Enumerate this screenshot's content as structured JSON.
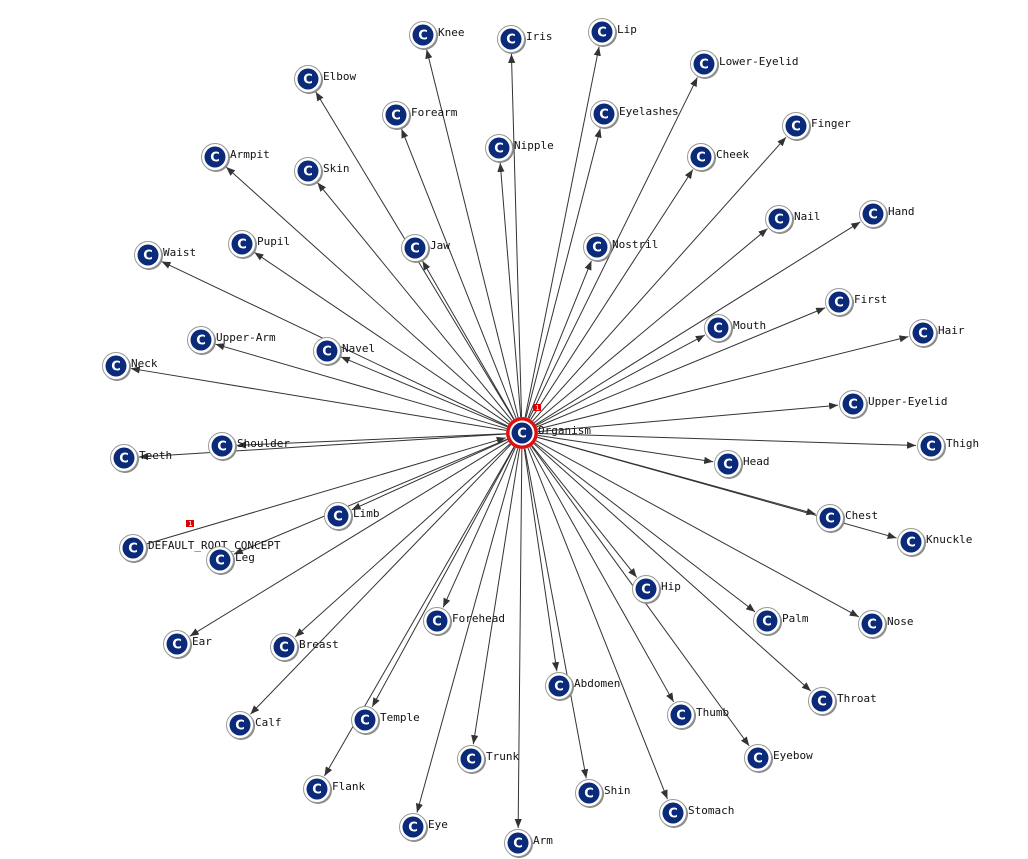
{
  "graph": {
    "root": "Organism",
    "parent": "DEFAULT_ROOT_CONCEPT",
    "node_icon_letter": "C",
    "badge_text": "1",
    "colors": {
      "node_fill": "#0b2a7a",
      "root_ring": "#e01010",
      "edge": "#333333",
      "badge": "#e00000"
    },
    "children": [
      "Knee",
      "Iris",
      "Lip",
      "Lower-Eyelid",
      "Elbow",
      "Forearm",
      "Eyelashes",
      "Nipple",
      "Finger",
      "Cheek",
      "Armpit",
      "Skin",
      "Nail",
      "Hand",
      "Jaw",
      "Nostril",
      "Pupil",
      "Waist",
      "First",
      "Hair",
      "Mouth",
      "Upper-Arm",
      "Navel",
      "Neck",
      "Upper-Eyelid",
      "Shoulder",
      "Teeth",
      "Thigh",
      "Head",
      "Chest",
      "Knuckle",
      "Limb",
      "Leg",
      "Hip",
      "Palm",
      "Nose",
      "Forehead",
      "Ear",
      "Breast",
      "Abdomen",
      "Throat",
      "Calf",
      "Thumb",
      "Temple",
      "Eyebow",
      "Trunk",
      "Flank",
      "Shin",
      "Stomach",
      "Eye",
      "Arm"
    ]
  }
}
